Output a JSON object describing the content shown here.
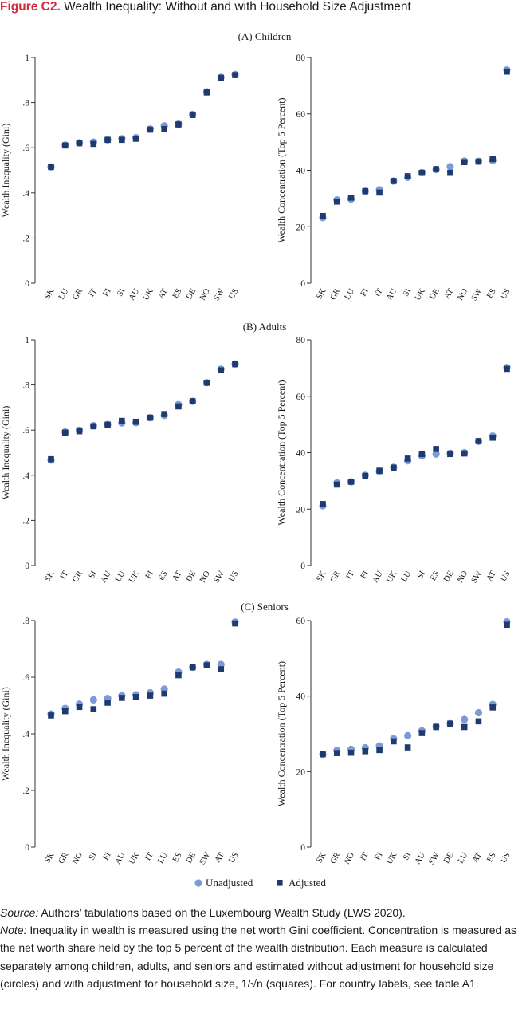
{
  "figure": {
    "label": "Figure C2.",
    "title": "Wealth Inequality: Without and with Household Size Adjustment"
  },
  "colors": {
    "unadjusted": "#7b9bd6",
    "adjusted": "#1f3a6e",
    "axis": "#333333",
    "title_label": "#d42a3c"
  },
  "legend": {
    "unadjusted_label": "Unadjusted",
    "adjusted_label": "Adjusted",
    "placement": "bottom-center"
  },
  "caption": {
    "source_lead": "Source:",
    "source_text": " Authors’ tabulations based on the Luxembourg Wealth Study (LWS 2020).",
    "note_lead": "Note:",
    "note_text": " Inequality in wealth is measured using the net worth Gini coefficient. Concentration is measured as the net worth share held by the top 5 percent of the wealth distribution. Each measure is calculated separately among children, adults, and seniors and estimated without adjustment for household size (circles) and with adjustment for household size, 1/√n (squares). For country labels, see table A1."
  },
  "chart_data": [
    {
      "type": "scatter",
      "panel": "(A) Children",
      "title": "",
      "ylabel": "Wealth Inequality (Gini)",
      "ylim": [
        0,
        1
      ],
      "yticks": [
        0,
        0.2,
        0.4,
        0.6,
        0.8,
        1
      ],
      "ytick_labels": [
        "0",
        ".2",
        ".4",
        ".6",
        ".8",
        "1"
      ],
      "categories": [
        "SK",
        "LU",
        "GR",
        "IT",
        "FI",
        "SI",
        "AU",
        "UK",
        "AT",
        "ES",
        "DE",
        "NO",
        "SW",
        "US"
      ],
      "series": [
        {
          "name": "Unadjusted",
          "marker": "circle",
          "values": [
            0.515,
            0.612,
            0.622,
            0.625,
            0.635,
            0.64,
            0.645,
            0.683,
            0.697,
            0.705,
            0.748,
            0.848,
            0.912,
            0.925
          ]
        },
        {
          "name": "Adjusted",
          "marker": "square",
          "values": [
            0.515,
            0.61,
            0.62,
            0.617,
            0.635,
            0.635,
            0.64,
            0.68,
            0.683,
            0.703,
            0.745,
            0.845,
            0.91,
            0.922
          ]
        }
      ]
    },
    {
      "type": "scatter",
      "panel": "(A) Children",
      "title": "",
      "ylabel": "Wealth Concentration (Top 5 Percent)",
      "ylim": [
        0,
        80
      ],
      "yticks": [
        0,
        20,
        40,
        60,
        80
      ],
      "ytick_labels": [
        "0",
        "20",
        "40",
        "60",
        "80"
      ],
      "categories": [
        "SK",
        "GR",
        "LU",
        "FI",
        "IT",
        "AU",
        "SI",
        "UK",
        "DE",
        "AT",
        "NO",
        "SW",
        "ES",
        "US"
      ],
      "series": [
        {
          "name": "Unadjusted",
          "marker": "circle",
          "values": [
            23.2,
            29.5,
            29.8,
            32.6,
            33.1,
            36.2,
            37.5,
            39.2,
            40.3,
            41.3,
            43.3,
            43.2,
            43.5,
            75.6
          ]
        },
        {
          "name": "Adjusted",
          "marker": "square",
          "values": [
            23.8,
            28.9,
            30.3,
            32.6,
            32.1,
            36.2,
            37.9,
            39.1,
            40.4,
            39.1,
            42.9,
            43.1,
            44.0,
            75.0
          ]
        }
      ]
    },
    {
      "type": "scatter",
      "panel": "(B) Adults",
      "title": "",
      "ylabel": "Wealth Inequality (Gini)",
      "ylim": [
        0,
        1
      ],
      "yticks": [
        0,
        0.2,
        0.4,
        0.6,
        0.8,
        1
      ],
      "ytick_labels": [
        "0",
        ".2",
        ".4",
        ".6",
        ".8",
        "1"
      ],
      "categories": [
        "SK",
        "IT",
        "GR",
        "SI",
        "AU",
        "LU",
        "UK",
        "FI",
        "ES",
        "AT",
        "DE",
        "NO",
        "SW",
        "US"
      ],
      "series": [
        {
          "name": "Unadjusted",
          "marker": "circle",
          "values": [
            0.467,
            0.592,
            0.6,
            0.62,
            0.625,
            0.632,
            0.633,
            0.655,
            0.665,
            0.713,
            0.728,
            0.81,
            0.87,
            0.893
          ]
        },
        {
          "name": "Adjusted",
          "marker": "square",
          "values": [
            0.471,
            0.589,
            0.595,
            0.617,
            0.624,
            0.641,
            0.637,
            0.655,
            0.671,
            0.705,
            0.728,
            0.81,
            0.865,
            0.892
          ]
        }
      ]
    },
    {
      "type": "scatter",
      "panel": "(B) Adults",
      "title": "",
      "ylabel": "Wealth Concentration (Top 5 Percent)",
      "ylim": [
        0,
        80
      ],
      "yticks": [
        0,
        20,
        40,
        60,
        80
      ],
      "ytick_labels": [
        "0",
        "20",
        "40",
        "60",
        "80"
      ],
      "categories": [
        "SK",
        "GR",
        "IT",
        "FI",
        "AU",
        "UK",
        "LU",
        "SI",
        "ES",
        "DE",
        "NO",
        "SW",
        "AT",
        "US"
      ],
      "series": [
        {
          "name": "Unadjusted",
          "marker": "circle",
          "values": [
            21.2,
            29.3,
            29.7,
            32.0,
            33.4,
            34.8,
            37.1,
            38.9,
            39.5,
            39.8,
            40.0,
            44.0,
            45.9,
            70.2
          ]
        },
        {
          "name": "Adjusted",
          "marker": "square",
          "values": [
            21.8,
            28.7,
            29.7,
            31.8,
            33.6,
            34.7,
            37.9,
            39.5,
            41.3,
            39.5,
            39.7,
            44.1,
            45.3,
            69.7
          ]
        }
      ]
    },
    {
      "type": "scatter",
      "panel": "(C) Seniors",
      "title": "",
      "ylabel": "Wealth Inequality (Gini)",
      "ylim": [
        0,
        0.8
      ],
      "yticks": [
        0,
        0.2,
        0.4,
        0.6,
        0.8
      ],
      "ytick_labels": [
        "0",
        ".2",
        ".4",
        ".6",
        ".8"
      ],
      "categories": [
        "SK",
        "GR",
        "NO",
        "SI",
        "FI",
        "AU",
        "UK",
        "IT",
        "LU",
        "ES",
        "DE",
        "SW",
        "AT",
        "US"
      ],
      "series": [
        {
          "name": "Unadjusted",
          "marker": "circle",
          "values": [
            0.47,
            0.49,
            0.505,
            0.52,
            0.525,
            0.535,
            0.538,
            0.545,
            0.558,
            0.618,
            0.635,
            0.645,
            0.645,
            0.795
          ]
        },
        {
          "name": "Adjusted",
          "marker": "square",
          "values": [
            0.465,
            0.48,
            0.495,
            0.487,
            0.51,
            0.527,
            0.53,
            0.535,
            0.542,
            0.607,
            0.635,
            0.642,
            0.628,
            0.79
          ]
        }
      ]
    },
    {
      "type": "scatter",
      "panel": "(C) Seniors",
      "title": "",
      "ylabel": "Wealth Concentration (Top 5 Percent)",
      "ylim": [
        0,
        60
      ],
      "yticks": [
        0,
        20,
        40,
        60
      ],
      "ytick_labels": [
        "0",
        "20",
        "40",
        "60"
      ],
      "categories": [
        "SK",
        "GR",
        "NO",
        "IT",
        "FI",
        "UK",
        "SI",
        "AU",
        "SW",
        "DE",
        "LU",
        "AT",
        "ES",
        "US"
      ],
      "series": [
        {
          "name": "Unadjusted",
          "marker": "circle",
          "values": [
            24.6,
            25.6,
            25.9,
            26.3,
            26.8,
            28.7,
            29.5,
            30.8,
            32.0,
            32.7,
            33.8,
            35.6,
            37.8,
            59.7
          ]
        },
        {
          "name": "Adjusted",
          "marker": "square",
          "values": [
            24.6,
            24.9,
            25.0,
            25.4,
            25.7,
            28.0,
            26.4,
            30.2,
            31.8,
            32.7,
            31.8,
            33.3,
            37.0,
            58.9
          ]
        }
      ]
    }
  ]
}
